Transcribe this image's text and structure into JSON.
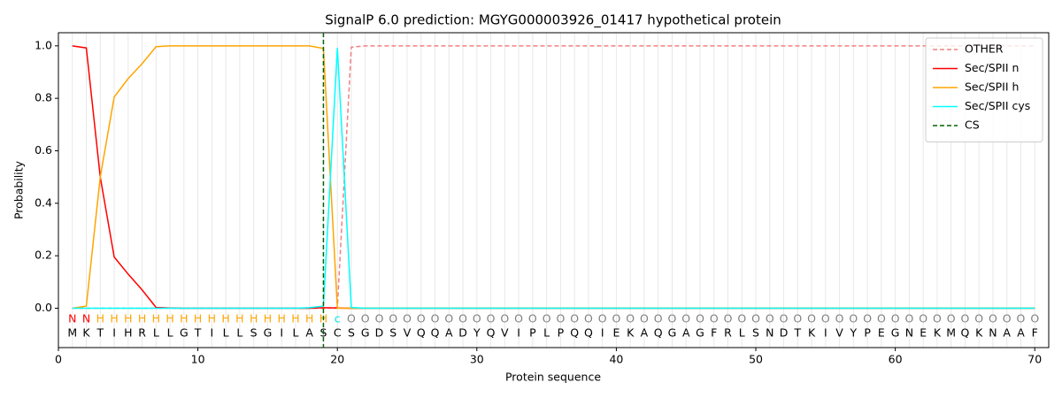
{
  "chart_data": {
    "type": "line",
    "title": "SignalP 6.0 prediction: MGYG000003926_01417 hypothetical protein",
    "x_label": "Protein sequence",
    "y_label": "Probability",
    "x": [
      1,
      2,
      3,
      4,
      5,
      6,
      7,
      8,
      9,
      10,
      11,
      12,
      13,
      14,
      15,
      16,
      17,
      18,
      19,
      20,
      21,
      22,
      23,
      24,
      25,
      26,
      27,
      28,
      29,
      30,
      31,
      32,
      33,
      34,
      35,
      36,
      37,
      38,
      39,
      40,
      41,
      42,
      43,
      44,
      45,
      46,
      47,
      48,
      49,
      50,
      51,
      52,
      53,
      54,
      55,
      56,
      57,
      58,
      59,
      60,
      61,
      62,
      63,
      64,
      65,
      66,
      67,
      68,
      69,
      70
    ],
    "sequence": [
      "M",
      "K",
      "T",
      "I",
      "H",
      "R",
      "L",
      "L",
      "G",
      "T",
      "I",
      "L",
      "L",
      "S",
      "G",
      "I",
      "L",
      "A",
      "S",
      "C",
      "S",
      "G",
      "D",
      "S",
      "V",
      "Q",
      "Q",
      "A",
      "D",
      "Y",
      "Q",
      "V",
      "I",
      "P",
      "L",
      "P",
      "Q",
      "Q",
      "I",
      "E",
      "K",
      "A",
      "Q",
      "G",
      "A",
      "G",
      "F",
      "R",
      "L",
      "S",
      "N",
      "D",
      "T",
      "K",
      "I",
      "V",
      "Y",
      "P",
      "E",
      "G",
      "N",
      "E",
      "K",
      "M",
      "Q",
      "K",
      "N",
      "A",
      "A",
      "F"
    ],
    "labels": [
      "N",
      "N",
      "H",
      "H",
      "H",
      "H",
      "H",
      "H",
      "H",
      "H",
      "H",
      "H",
      "H",
      "H",
      "H",
      "H",
      "H",
      "H",
      "H",
      "c",
      "O",
      "O",
      "O",
      "O",
      "O",
      "O",
      "O",
      "O",
      "O",
      "O",
      "O",
      "O",
      "O",
      "O",
      "O",
      "O",
      "O",
      "O",
      "O",
      "O",
      "O",
      "O",
      "O",
      "O",
      "O",
      "O",
      "O",
      "O",
      "O",
      "O",
      "O",
      "O",
      "O",
      "O",
      "O",
      "O",
      "O",
      "O",
      "O",
      "O",
      "O",
      "O",
      "O",
      "O",
      "O",
      "O",
      "O",
      "O",
      "O",
      "O"
    ],
    "label_colors": {
      "N": "#ff0000",
      "H": "#ffa500",
      "c": "#00e5e5",
      "O": "#808080"
    },
    "series": [
      {
        "name": "OTHER",
        "color": "#f08080",
        "dash": true,
        "values": [
          0,
          0,
          0,
          0,
          0,
          0,
          0,
          0,
          0,
          0,
          0,
          0,
          0,
          0,
          0,
          0,
          0,
          0,
          0,
          0.002,
          0.995,
          1,
          1,
          1,
          1,
          1,
          1,
          1,
          1,
          1,
          1,
          1,
          1,
          1,
          1,
          1,
          1,
          1,
          1,
          1,
          1,
          1,
          1,
          1,
          1,
          1,
          1,
          1,
          1,
          1,
          1,
          1,
          1,
          1,
          1,
          1,
          1,
          1,
          1,
          1,
          1,
          1,
          1,
          1,
          1,
          1,
          1,
          1,
          1,
          1
        ]
      },
      {
        "name": "Sec/SPII n",
        "color": "#ff0000",
        "values": [
          1,
          0.992,
          0.5,
          0.195,
          0.13,
          0.07,
          0.003,
          0.001,
          0,
          0,
          0,
          0,
          0,
          0,
          0,
          0,
          0,
          0,
          0.002,
          0.001,
          0,
          0,
          0,
          0,
          0,
          0,
          0,
          0,
          0,
          0,
          0,
          0,
          0,
          0,
          0,
          0,
          0,
          0,
          0,
          0,
          0,
          0,
          0,
          0,
          0,
          0,
          0,
          0,
          0,
          0,
          0,
          0,
          0,
          0,
          0,
          0,
          0,
          0,
          0,
          0,
          0,
          0,
          0,
          0,
          0,
          0,
          0,
          0,
          0,
          0
        ]
      },
      {
        "name": "Sec/SPII h",
        "color": "#ffa500",
        "values": [
          0,
          0.008,
          0.5,
          0.805,
          0.875,
          0.932,
          0.997,
          1,
          1,
          1,
          1,
          1,
          1,
          1,
          1,
          1,
          1,
          1,
          0.99,
          0,
          0,
          0,
          0,
          0,
          0,
          0,
          0,
          0,
          0,
          0,
          0,
          0,
          0,
          0,
          0,
          0,
          0,
          0,
          0,
          0,
          0,
          0,
          0,
          0,
          0,
          0,
          0,
          0,
          0,
          0,
          0,
          0,
          0,
          0,
          0,
          0,
          0,
          0,
          0,
          0,
          0,
          0,
          0,
          0,
          0,
          0,
          0,
          0,
          0,
          0
        ]
      },
      {
        "name": "Sec/SPII cys",
        "color": "#00ffff",
        "values": [
          0,
          0,
          0,
          0,
          0,
          0,
          0,
          0,
          0,
          0,
          0,
          0,
          0,
          0,
          0,
          0,
          0,
          0.002,
          0.008,
          0.992,
          0.003,
          0,
          0,
          0,
          0,
          0,
          0,
          0,
          0,
          0,
          0,
          0,
          0,
          0,
          0,
          0,
          0,
          0,
          0,
          0,
          0,
          0,
          0,
          0,
          0,
          0,
          0,
          0,
          0,
          0,
          0,
          0,
          0,
          0,
          0,
          0,
          0,
          0,
          0,
          0,
          0,
          0,
          0,
          0,
          0,
          0,
          0,
          0,
          0,
          0
        ]
      }
    ],
    "cleavage_site": {
      "name": "CS",
      "color": "#006400",
      "x": 19
    },
    "xlim": [
      0,
      71
    ],
    "ylim": [
      -0.15,
      1.05
    ],
    "xticks": [
      0,
      10,
      20,
      30,
      40,
      50,
      60,
      70
    ],
    "yticks": [
      {
        "value": 0,
        "label": "0.0"
      },
      0.2,
      0.4,
      0.6,
      0.8,
      {
        "value": 1,
        "label": "1.0"
      }
    ],
    "legend": "upper right"
  }
}
